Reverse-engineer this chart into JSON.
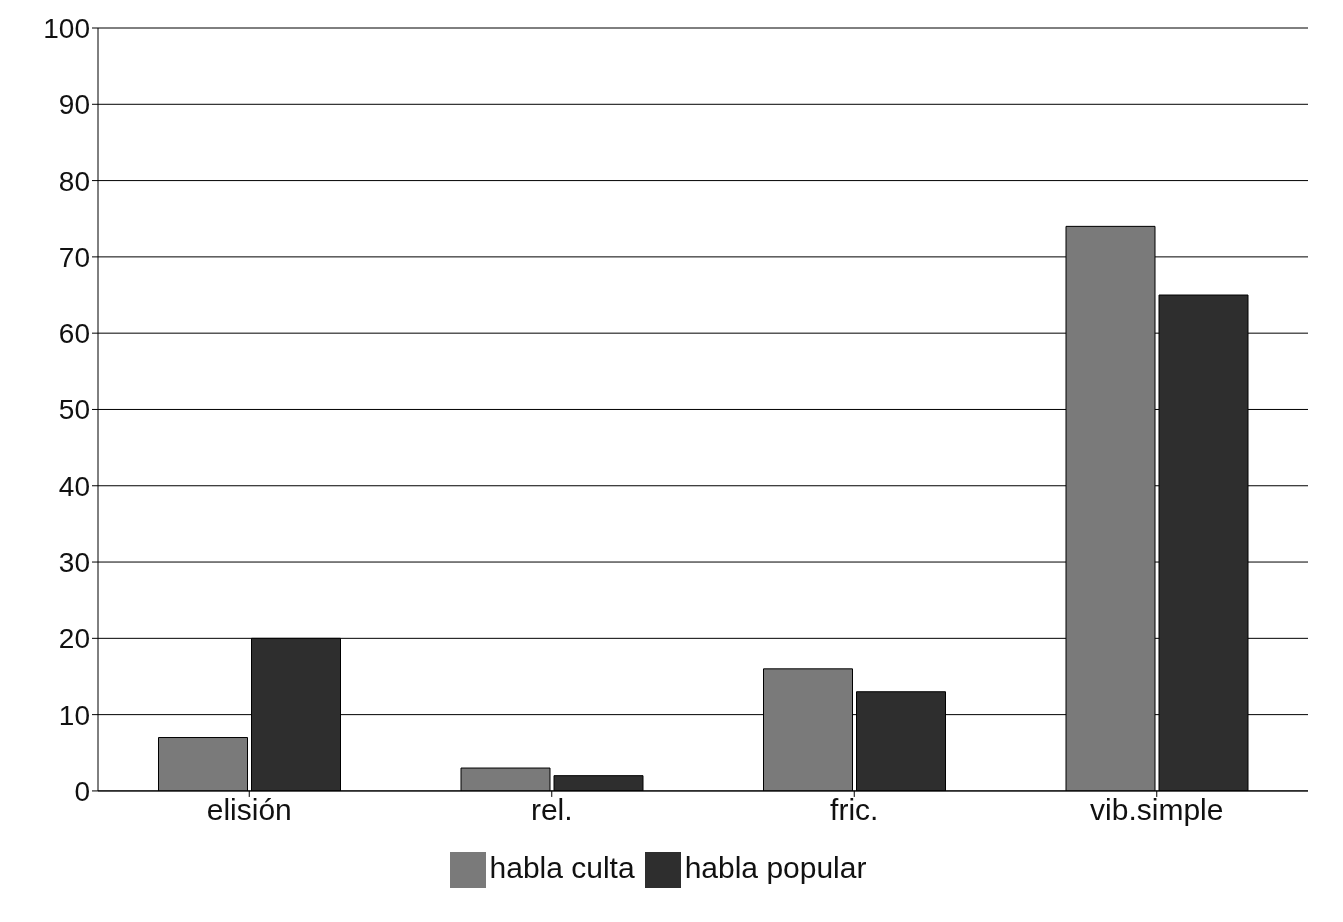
{
  "chart_data": {
    "type": "bar",
    "categories": [
      "elisión",
      "rel.",
      "fric.",
      "vib.simple"
    ],
    "series": [
      {
        "name": "habla culta",
        "color": "#7a7a7a",
        "values": [
          7,
          3,
          16,
          74
        ]
      },
      {
        "name": "habla popular",
        "color": "#2e2e2e",
        "values": [
          20,
          2,
          13,
          65
        ]
      }
    ],
    "ylim": [
      0,
      100
    ],
    "yticks": [
      0,
      10,
      20,
      30,
      40,
      50,
      60,
      70,
      80,
      90,
      100
    ],
    "grid": "y",
    "legend": "bottom"
  }
}
